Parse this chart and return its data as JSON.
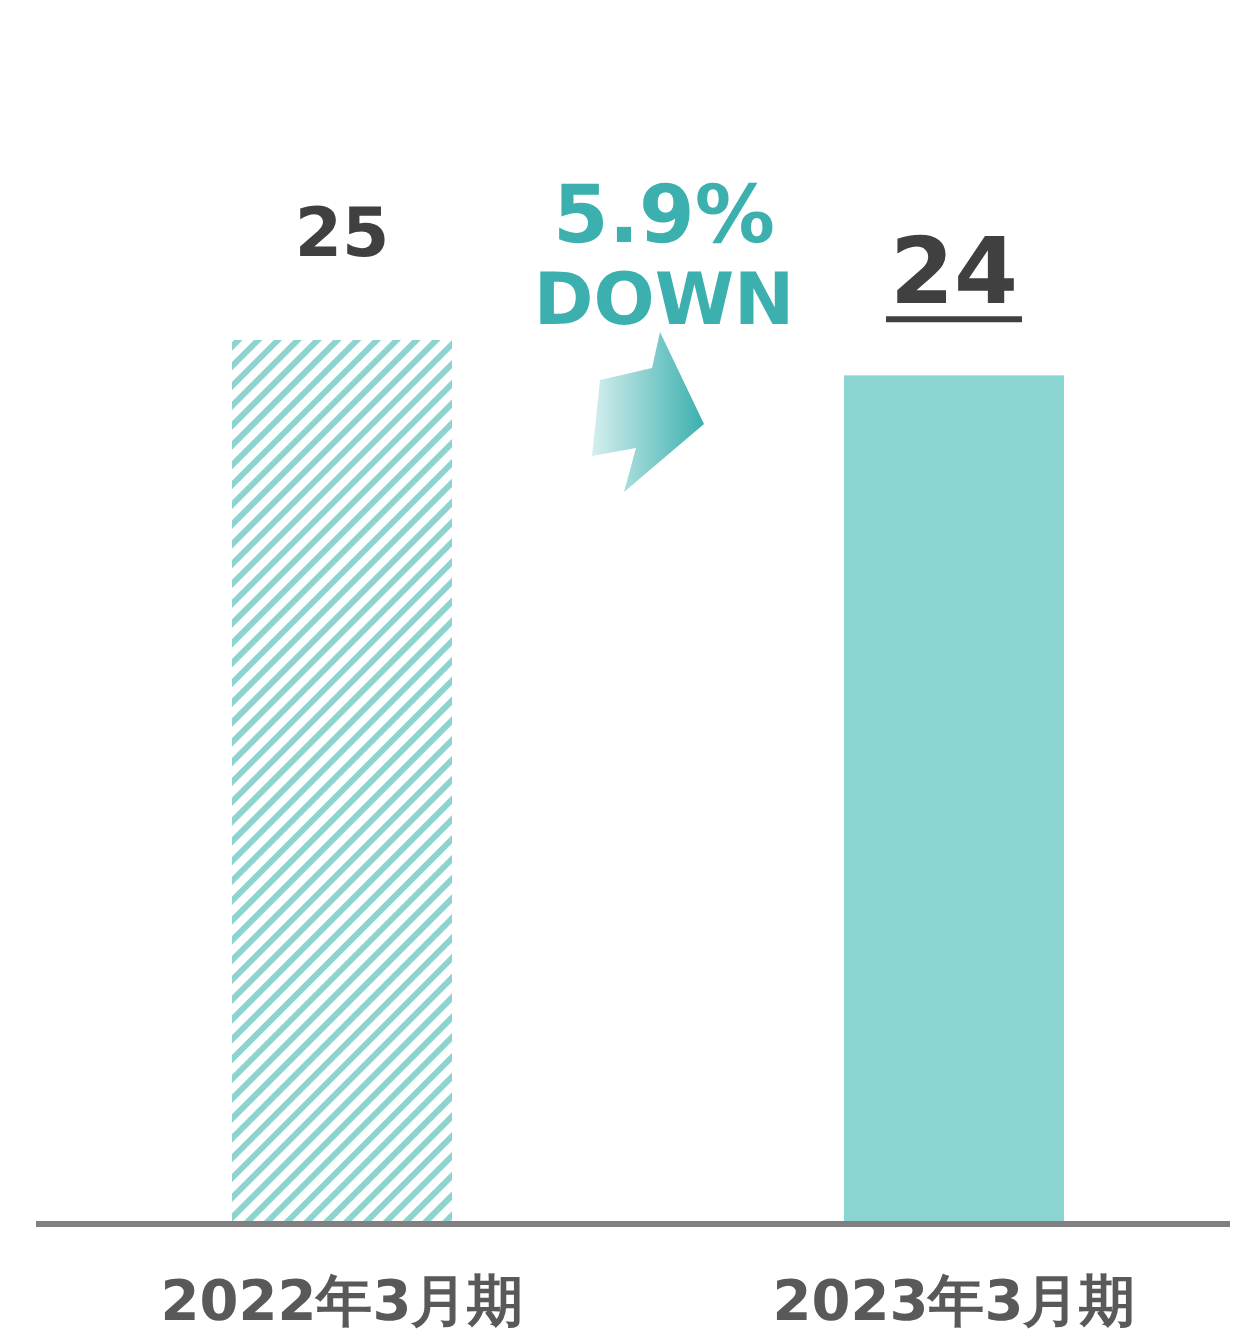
{
  "chart_data": {
    "type": "bar",
    "categories": [
      "2022年3月期",
      "2023年3月期"
    ],
    "values": [
      25,
      24
    ],
    "colors": [
      "#8dd3d0",
      "#8ad4d2"
    ],
    "data_labels": true,
    "annotations": [
      "5.9%",
      "DOWN"
    ]
  }
}
